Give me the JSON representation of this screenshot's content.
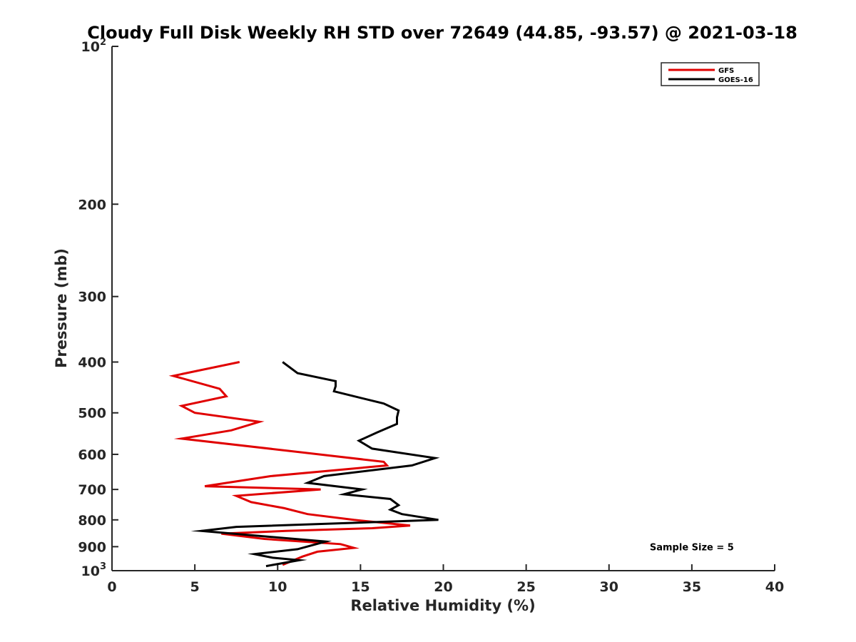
{
  "chart_data": {
    "type": "line",
    "title": "Cloudy Full Disk Weekly RH STD over 72649 (44.85, -93.57) @ 2021-03-18",
    "xlabel": "Relative Humidity (%)",
    "ylabel": "Pressure (mb)",
    "xlim": [
      0,
      40
    ],
    "ylim": [
      100,
      1000
    ],
    "y_scale": "log",
    "y_reversed": true,
    "grid": false,
    "legend_position": "top-right",
    "x_ticks": [
      "0",
      "5",
      "10",
      "15",
      "20",
      "25",
      "30",
      "35",
      "40"
    ],
    "y_ticks": [
      {
        "value": 100,
        "base": "10",
        "sup": "2"
      },
      {
        "value": 200,
        "base": "200",
        "sup": ""
      },
      {
        "value": 300,
        "base": "300",
        "sup": ""
      },
      {
        "value": 400,
        "base": "400",
        "sup": ""
      },
      {
        "value": 500,
        "base": "500",
        "sup": ""
      },
      {
        "value": 600,
        "base": "600",
        "sup": ""
      },
      {
        "value": 700,
        "base": "700",
        "sup": ""
      },
      {
        "value": 800,
        "base": "800",
        "sup": ""
      },
      {
        "value": 900,
        "base": "900",
        "sup": ""
      },
      {
        "value": 1000,
        "base": "10",
        "sup": "3"
      }
    ],
    "series": [
      {
        "name": "GFS",
        "color": "#e00000",
        "x": [
          7.7,
          3.7,
          6.5,
          6.9,
          4.2,
          5.0,
          8.9,
          7.2,
          4.2,
          10.5,
          16.4,
          16.6,
          9.6,
          5.6,
          12.6,
          7.5,
          8.4,
          10.4,
          11.8,
          14.6,
          18.0,
          15.7,
          10.5,
          6.6,
          9.2,
          13.8,
          14.6,
          12.4,
          11.5,
          10.3
        ],
        "y": [
          400,
          425,
          450,
          465,
          485,
          500,
          520,
          540,
          560,
          590,
          620,
          630,
          660,
          690,
          700,
          720,
          740,
          760,
          780,
          800,
          820,
          830,
          840,
          850,
          870,
          890,
          905,
          920,
          940,
          975
        ]
      },
      {
        "name": "GOES-16",
        "color": "#000000",
        "x": [
          10.3,
          11.2,
          13.5,
          13.5,
          13.4,
          16.4,
          17.3,
          17.2,
          17.2,
          16.0,
          14.9,
          15.7,
          19.5,
          18.1,
          12.8,
          11.8,
          15.1,
          14.0,
          16.8,
          17.3,
          16.8,
          17.5,
          19.7,
          7.5,
          5.4,
          12.9,
          11.2,
          8.6,
          9.7,
          11.3,
          9.3
        ],
        "y": [
          400,
          420,
          435,
          445,
          455,
          480,
          495,
          510,
          525,
          545,
          565,
          585,
          610,
          630,
          660,
          680,
          700,
          715,
          730,
          750,
          765,
          780,
          800,
          825,
          840,
          880,
          910,
          930,
          945,
          955,
          980
        ]
      }
    ],
    "annotations": [
      {
        "text": "Sample Size = 5",
        "x": 35,
        "y": 900
      }
    ]
  }
}
